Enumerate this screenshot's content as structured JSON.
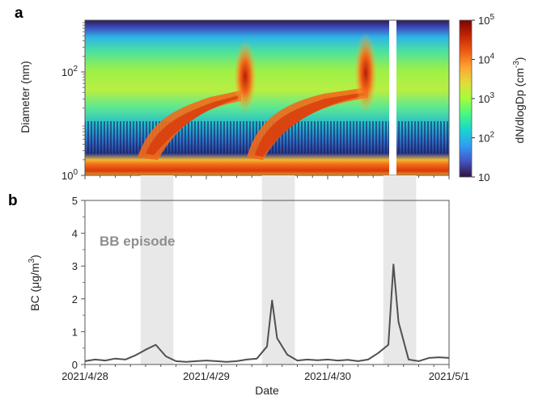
{
  "chart_data": [
    {
      "panel_label": "a",
      "type": "heatmap",
      "ylabel": "Diameter (nm)",
      "yscale": "log",
      "ylim": [
        1,
        1000
      ],
      "y_ticks": [
        {
          "value": 1,
          "base": "10",
          "exp": "0"
        },
        {
          "value": 100,
          "base": "10",
          "exp": "2"
        }
      ],
      "xlim": [
        "2021/4/28",
        "2021/5/1"
      ],
      "colorbar": {
        "label_main": "dN/dlogDp (cm",
        "label_exp": "-3",
        "label_end": ")",
        "scale": "log",
        "range": [
          10,
          100000
        ],
        "ticks": [
          {
            "value": 10,
            "text": "10",
            "exp": ""
          },
          {
            "value": 100,
            "text": "10",
            "exp": "2"
          },
          {
            "value": 1000,
            "text": "10",
            "exp": "3"
          },
          {
            "value": 10000,
            "text": "10",
            "exp": "4"
          },
          {
            "value": 100000,
            "text": "10",
            "exp": "5"
          }
        ]
      },
      "data_gap": [
        "2021/4/30 14:00",
        "2021/4/30 16:00"
      ]
    },
    {
      "panel_label": "b",
      "type": "line",
      "ylabel_main": "BC (μg/m",
      "ylabel_exp": "3",
      "ylabel_end": ")",
      "xlabel": "Date",
      "ylim": [
        0,
        5
      ],
      "y_ticks": [
        "0",
        "1",
        "2",
        "3",
        "4",
        "5"
      ],
      "x_ticks": [
        "2021/4/28",
        "2021/4/29",
        "2021/4/30",
        "2021/5/1"
      ],
      "annotation": "BB episode",
      "series_color": "#505050",
      "shaded_episodes": [
        {
          "start_hour": 11,
          "end_hour": 17.5
        },
        {
          "start_hour": 35,
          "end_hour": 41.5
        },
        {
          "start_hour": 59,
          "end_hour": 65.5
        }
      ],
      "x_hours": [
        0,
        2,
        4,
        6,
        8,
        10,
        12,
        14,
        16,
        18,
        20,
        22,
        24,
        26,
        28,
        30,
        32,
        34,
        36,
        37,
        38,
        40,
        42,
        44,
        46,
        48,
        50,
        52,
        54,
        56,
        58,
        60,
        61,
        62,
        64,
        66,
        68,
        70,
        72
      ],
      "values": [
        0.1,
        0.15,
        0.12,
        0.18,
        0.15,
        0.28,
        0.45,
        0.6,
        0.25,
        0.1,
        0.08,
        0.1,
        0.12,
        0.1,
        0.08,
        0.1,
        0.15,
        0.18,
        0.55,
        1.95,
        0.8,
        0.3,
        0.12,
        0.15,
        0.13,
        0.15,
        0.12,
        0.14,
        0.1,
        0.15,
        0.35,
        0.6,
        3.05,
        1.3,
        0.15,
        0.1,
        0.2,
        0.22,
        0.2
      ]
    }
  ]
}
